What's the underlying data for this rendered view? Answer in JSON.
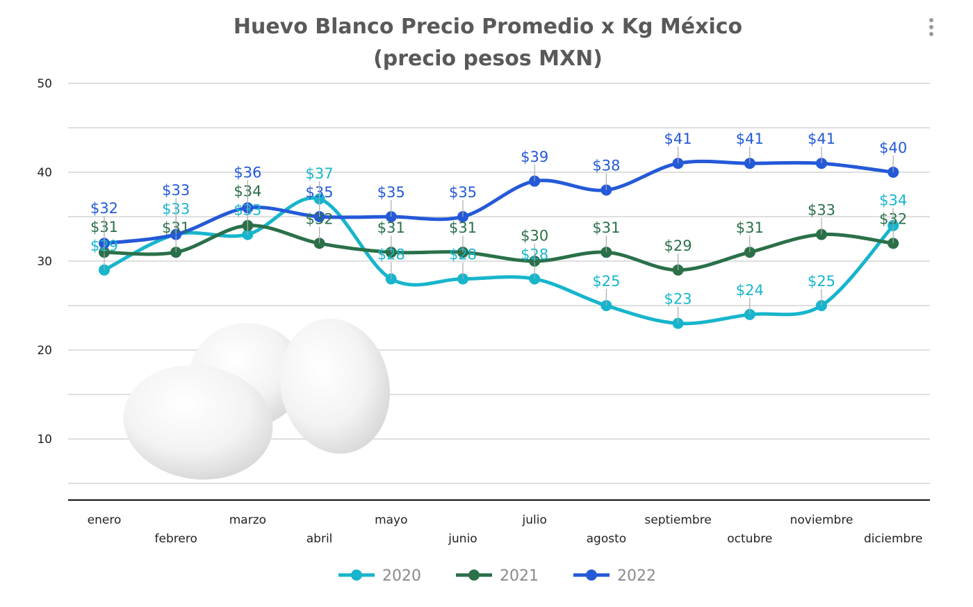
{
  "chart_data": {
    "type": "line",
    "title": [
      "Huevo Blanco Precio Promedio x Kg México",
      "(precio pesos MXN)"
    ],
    "xlabel": "",
    "ylabel": "",
    "categories": [
      "enero",
      "febrero",
      "marzo",
      "abril",
      "mayo",
      "junio",
      "julio",
      "agosto",
      "septiembre",
      "octubre",
      "noviembre",
      "diciembre"
    ],
    "yticks": [
      10,
      20,
      30,
      40,
      50
    ],
    "ylim": [
      3,
      50
    ],
    "grid": true,
    "smooth": true,
    "data_label_prefix": "$",
    "legend_position": "bottom",
    "series": [
      {
        "name": "2020",
        "color": "#17b5cc",
        "values": [
          29,
          33,
          33,
          37,
          28,
          28,
          28,
          25,
          23,
          24,
          25,
          34
        ]
      },
      {
        "name": "2021",
        "color": "#2a7049",
        "values": [
          31,
          31,
          34,
          32,
          31,
          31,
          30,
          31,
          29,
          31,
          33,
          32
        ]
      },
      {
        "name": "2022",
        "color": "#2459d8",
        "values": [
          32,
          33,
          36,
          35,
          35,
          35,
          39,
          38,
          41,
          41,
          41,
          40
        ]
      }
    ]
  },
  "menu_icon": "more-vertical-icon"
}
